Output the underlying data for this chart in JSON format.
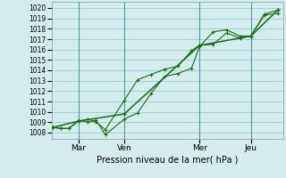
{
  "xlabel": "Pression niveau de la mer( hPa )",
  "background_color": "#d4eeee",
  "grid_color": "#99cccc",
  "line_color": "#1a6b1a",
  "dark_line_color": "#1a5c1a",
  "xlim": [
    0.0,
    8.6
  ],
  "ylim": [
    1007.4,
    1020.6
  ],
  "yticks": [
    1008,
    1009,
    1010,
    1011,
    1012,
    1013,
    1014,
    1015,
    1016,
    1017,
    1018,
    1019,
    1020
  ],
  "xtick_labels": [
    "Mar",
    "Ven",
    "Mer",
    "Jeu"
  ],
  "xtick_positions": [
    1.0,
    2.7,
    5.5,
    7.4
  ],
  "vlines": [
    1.0,
    2.7,
    5.5,
    7.4
  ],
  "series1_x": [
    0.05,
    0.35,
    0.65,
    1.0,
    1.35,
    1.65,
    2.0,
    2.7,
    3.2,
    3.7,
    4.2,
    4.7,
    5.2,
    5.5,
    6.0,
    6.5,
    7.0,
    7.4,
    7.9,
    8.4
  ],
  "series1_y": [
    1008.5,
    1008.4,
    1008.4,
    1009.1,
    1009.3,
    1009.0,
    1008.3,
    1011.1,
    1013.1,
    1013.6,
    1014.1,
    1014.4,
    1015.9,
    1016.4,
    1016.5,
    1017.6,
    1017.1,
    1017.3,
    1019.3,
    1019.5
  ],
  "series2_x": [
    0.05,
    0.35,
    0.65,
    1.0,
    1.35,
    1.65,
    2.0,
    2.7,
    3.2,
    3.7,
    4.2,
    4.7,
    5.2,
    5.5,
    6.0,
    6.5,
    7.0,
    7.4,
    7.9,
    8.4
  ],
  "series2_y": [
    1008.5,
    1008.4,
    1008.4,
    1009.2,
    1009.0,
    1009.2,
    1007.8,
    1009.3,
    1009.9,
    1011.8,
    1013.4,
    1013.7,
    1014.2,
    1016.3,
    1017.7,
    1017.9,
    1017.3,
    1017.3,
    1019.4,
    1019.8
  ],
  "series3_x": [
    0.05,
    1.0,
    2.7,
    5.5,
    7.4,
    8.4
  ],
  "series3_y": [
    1008.5,
    1009.1,
    1009.8,
    1016.4,
    1017.3,
    1019.8
  ]
}
